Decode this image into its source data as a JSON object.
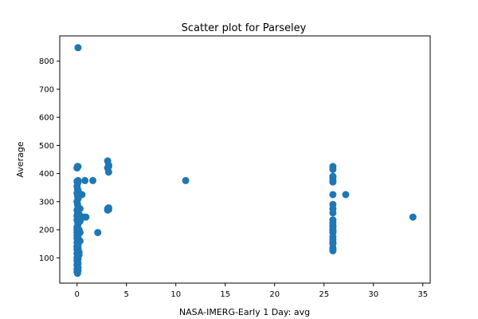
{
  "chart_data": {
    "type": "scatter",
    "title": "Scatter plot for Parseley",
    "xlabel": "NASA-IMERG-Early 1 Day: avg",
    "ylabel": "Average",
    "xlim": [
      -1.75,
      35.75
    ],
    "ylim": [
      10,
      890
    ],
    "xticks": [
      0,
      5,
      10,
      15,
      20,
      25,
      30,
      35
    ],
    "yticks": [
      100,
      200,
      300,
      400,
      500,
      600,
      700,
      800
    ],
    "grid": false,
    "marker_color": "#1f77b4",
    "series": [
      {
        "x": [
          0.1,
          0.05,
          0.0,
          0.1,
          0.0,
          0.05,
          0.1,
          0.0,
          0.05,
          0.1,
          0.0,
          0.05,
          0.1,
          0.0,
          0.05,
          0.1,
          0.0,
          0.05,
          0.1,
          0.0,
          0.05,
          0.1,
          0.0,
          0.05,
          0.1,
          0.0,
          0.05,
          0.1,
          0.0,
          0.1,
          0.0,
          0.05,
          0.1,
          0.05,
          0.1,
          0.0,
          0.05,
          0.1,
          0.0,
          0.1,
          0.0,
          0.05,
          0.1,
          0.0,
          0.05,
          0.1,
          0.0,
          0.1,
          0.0,
          0.05,
          0.1,
          0.0,
          0.05,
          0.1,
          0.0,
          0.1,
          0.0,
          0.05,
          0.1,
          0.0,
          0.05,
          0.1,
          0.0,
          0.05,
          0.1,
          0.0,
          0.05,
          0.1,
          0.2,
          0.1,
          0.3,
          0.2,
          0.1,
          0.1,
          0.2,
          0.2,
          0.1,
          0.3,
          0.3,
          0.2,
          0.1,
          0.3,
          0.2,
          0.2,
          0.5,
          0.5,
          0.8,
          0.7,
          0.9,
          1.6,
          2.1,
          3.1,
          3.2,
          3.2,
          3.1,
          3.2,
          3.1,
          3.2,
          3.1,
          3.2,
          11.0,
          25.9,
          25.9,
          25.9,
          25.9,
          25.9,
          25.9,
          25.9,
          25.9,
          25.9,
          25.9,
          25.9,
          25.9,
          25.9,
          25.9,
          25.9,
          25.9,
          25.9,
          25.9,
          25.9,
          25.9,
          25.9,
          25.9,
          25.9,
          25.9,
          27.2,
          34.0
        ],
        "y": [
          848,
          425,
          420,
          425,
          372,
          370,
          368,
          355,
          345,
          340,
          330,
          320,
          310,
          300,
          290,
          280,
          270,
          260,
          255,
          250,
          245,
          240,
          235,
          230,
          220,
          210,
          200,
          195,
          190,
          185,
          180,
          175,
          170,
          165,
          160,
          155,
          150,
          145,
          140,
          135,
          130,
          125,
          120,
          115,
          110,
          105,
          100,
          95,
          90,
          85,
          80,
          75,
          70,
          65,
          60,
          55,
          50,
          45,
          130,
          140,
          150,
          160,
          170,
          180,
          190,
          200,
          210,
          220,
          250,
          270,
          275,
          240,
          375,
          260,
          245,
          255,
          150,
          160,
          230,
          200,
          180,
          190,
          110,
          120,
          245,
          325,
          375,
          245,
          245,
          375,
          190,
          445,
          430,
          425,
          420,
          405,
          275,
          272,
          270,
          278,
          375,
          425,
          415,
          390,
          385,
          375,
          370,
          325,
          290,
          275,
          235,
          225,
          215,
          200,
          190,
          175,
          165,
          150,
          135,
          130,
          125,
          210,
          260,
          195,
          155,
          325,
          245
        ]
      }
    ]
  }
}
